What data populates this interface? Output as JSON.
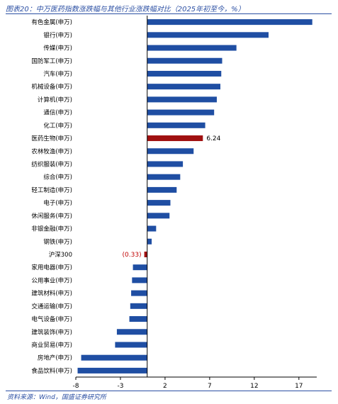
{
  "header": {
    "title": "图表20：中万医药指数涨跌幅与其他行业涨跌幅对比（2025年初至今，%）"
  },
  "footer": {
    "source": "资料来源：Wind，国盛证券研究所"
  },
  "colors": {
    "bar_default": "#1f4ea3",
    "bar_highlight": "#a01010",
    "label_negative": "#c00000",
    "axis": "#000000",
    "rule": "#2b4fa3"
  },
  "chart_data": {
    "type": "bar",
    "orientation": "horizontal",
    "title": "",
    "xlabel": "",
    "ylabel": "",
    "xlim": [
      -8,
      19
    ],
    "xticks": [
      -8,
      -3,
      2,
      7,
      12,
      17
    ],
    "grid": false,
    "categories": [
      "有色金属(申万)",
      "银行(申万)",
      "传媒(申万)",
      "国防军工(申万)",
      "汽车(申万)",
      "机械设备(申万)",
      "计算机(申万)",
      "通信(申万)",
      "化工(申万)",
      "医药生物(申万)",
      "农林牧渔(申万)",
      "纺织服装(申万)",
      "综合(申万)",
      "轻工制造(申万)",
      "电子(申万)",
      "休闲服务(申万)",
      "非银金融(申万)",
      "钢铁(申万)",
      "沪深300",
      "家用电器(申万)",
      "公用事业(申万)",
      "建筑材料(申万)",
      "交通运输(申万)",
      "电气设备(申万)",
      "建筑装饰(申万)",
      "商业贸易(申万)",
      "房地产(申万)",
      "食品饮料(申万)"
    ],
    "values": [
      18.5,
      13.6,
      10.0,
      8.4,
      8.3,
      8.2,
      7.8,
      7.5,
      6.5,
      6.24,
      5.2,
      4.0,
      3.7,
      3.3,
      2.6,
      2.5,
      1.0,
      0.5,
      -0.33,
      -1.6,
      -1.7,
      -1.8,
      -1.9,
      -2.0,
      -3.4,
      -3.6,
      -7.4,
      -7.8
    ],
    "highlight": [
      "医药生物(申万)",
      "沪深300"
    ],
    "data_labels": [
      {
        "category": "医药生物(申万)",
        "text": "6.24"
      },
      {
        "category": "沪深300",
        "text": "(0.33)"
      }
    ]
  }
}
